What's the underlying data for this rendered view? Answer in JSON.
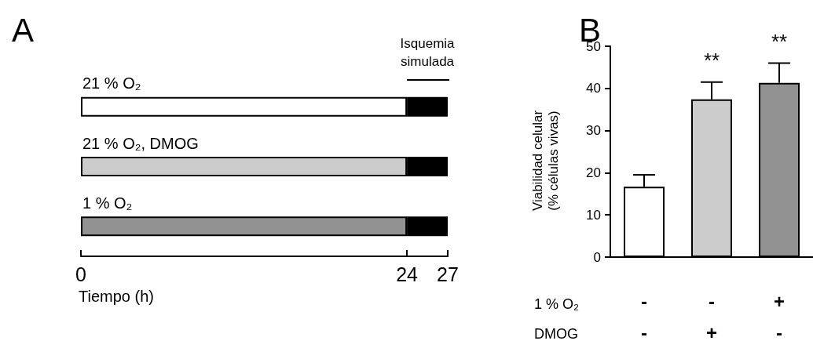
{
  "chart_data": [
    {
      "type": "bar",
      "title": "A",
      "orientation": "horizontal",
      "stacked": true,
      "categories": [
        "21 % O₂",
        "21 % O₂, DMOG",
        "1 % O₂"
      ],
      "series": [
        {
          "colors": [
            "#ffffff",
            "#cccccc",
            "#929292"
          ],
          "values": [
            24,
            24,
            24
          ]
        },
        {
          "color": "#000000",
          "values": [
            3,
            3,
            3
          ]
        }
      ],
      "xlim": [
        0,
        27
      ],
      "xticks": [
        0,
        24,
        27
      ],
      "xlabel": "Tiempo (h)",
      "annotations": [
        "Isquemia\nsimulada"
      ]
    },
    {
      "type": "bar",
      "title": "B",
      "categories": [
        "-\n-",
        "-\n+",
        "+\n-"
      ],
      "values": [
        16.7,
        37.4,
        41.3
      ],
      "colors": [
        "#ffffff",
        "#cccccc",
        "#929292"
      ],
      "errors": [
        [
          16.7,
          19.5
        ],
        [
          37.4,
          41.5
        ],
        [
          41.3,
          46.0
        ]
      ],
      "ylim": [
        0,
        50
      ],
      "yticks": [
        0,
        10,
        20,
        30,
        40,
        50
      ],
      "ylabel": "Viabilidad celular\n(% células vivas)",
      "annotations": [
        "1 % O₂\n\nDMOG",
        "**",
        "**"
      ]
    }
  ]
}
